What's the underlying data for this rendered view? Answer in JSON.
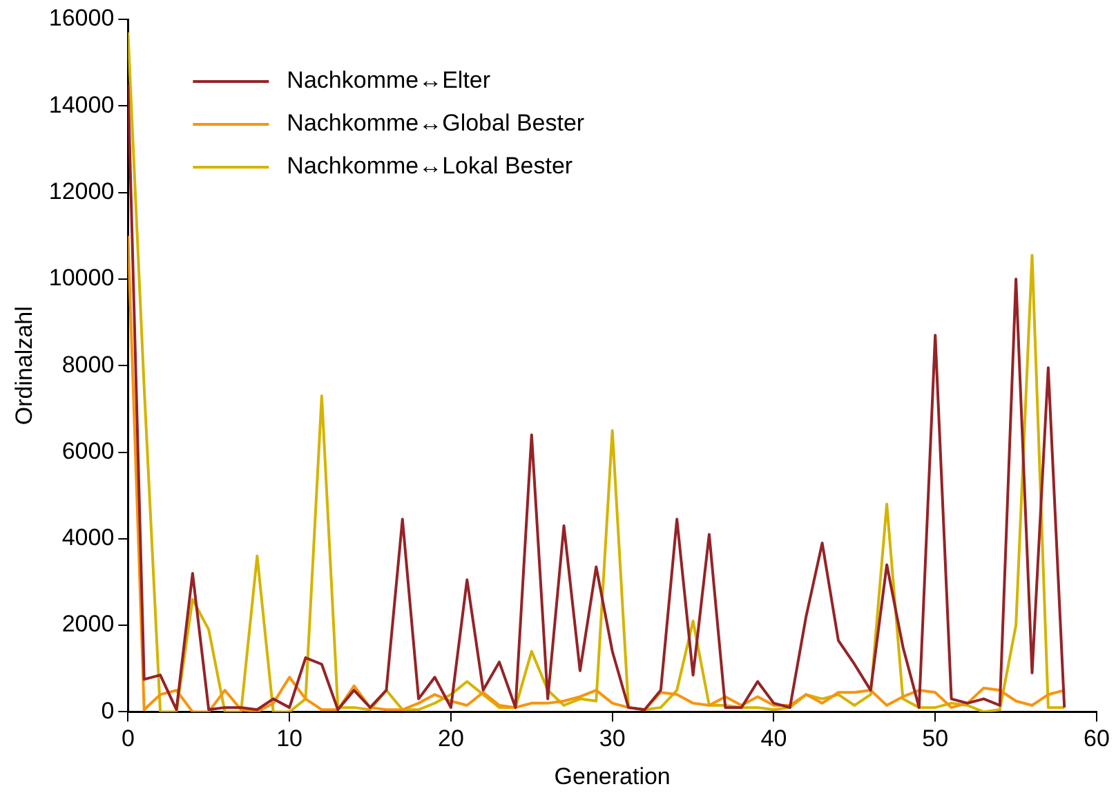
{
  "chart_data": {
    "type": "line",
    "xlabel": "Generation",
    "ylabel": "Ordinalzahl",
    "xlim": [
      0,
      60
    ],
    "xticks": [
      0,
      10,
      20,
      30,
      40,
      50,
      60
    ],
    "ylim": [
      0,
      16000
    ],
    "yticks": [
      0,
      2000,
      4000,
      6000,
      8000,
      10000,
      12000,
      14000,
      16000
    ],
    "grid": false,
    "legend": "top left",
    "marker": "none",
    "line_style": "solid",
    "x": [
      0,
      1,
      2,
      3,
      4,
      5,
      6,
      7,
      8,
      9,
      10,
      11,
      12,
      13,
      14,
      15,
      16,
      17,
      18,
      19,
      20,
      21,
      22,
      23,
      24,
      25,
      26,
      27,
      28,
      29,
      30,
      31,
      32,
      33,
      34,
      35,
      36,
      37,
      38,
      39,
      40,
      41,
      42,
      43,
      44,
      45,
      46,
      47,
      48,
      49,
      50,
      51,
      52,
      53,
      54,
      55,
      56,
      57,
      58
    ],
    "series": [
      {
        "name": "Nachkomme↔Elter",
        "color": "#952327",
        "values": [
          14500,
          750,
          850,
          50,
          3200,
          50,
          100,
          100,
          50,
          300,
          100,
          1250,
          1100,
          50,
          500,
          100,
          500,
          4450,
          300,
          800,
          100,
          3050,
          500,
          1150,
          100,
          6400,
          300,
          4300,
          950,
          3350,
          1400,
          100,
          50,
          500,
          4450,
          850,
          4100,
          100,
          100,
          700,
          200,
          100,
          2200,
          3900,
          1650,
          1100,
          500,
          3400,
          1500,
          100,
          8700,
          300,
          200,
          300,
          150,
          10000,
          900,
          7950,
          100
        ]
      },
      {
        "name": "Nachkomme↔Global Bester",
        "color": "#f7940f",
        "values": [
          11000,
          50,
          400,
          500,
          0,
          0,
          500,
          50,
          0,
          200,
          800,
          300,
          50,
          50,
          600,
          100,
          50,
          50,
          200,
          400,
          250,
          150,
          450,
          150,
          100,
          200,
          200,
          250,
          350,
          500,
          200,
          100,
          50,
          450,
          400,
          200,
          150,
          350,
          150,
          350,
          150,
          150,
          400,
          200,
          450,
          450,
          500,
          150,
          350,
          500,
          450,
          100,
          200,
          550,
          500,
          250,
          150,
          400,
          500
        ]
      },
      {
        "name": "Nachkomme↔Lokal Bester",
        "color": "#d4b400",
        "values": [
          15700,
          7500,
          0,
          0,
          2600,
          1900,
          0,
          0,
          3600,
          0,
          0,
          300,
          7300,
          100,
          100,
          50,
          500,
          50,
          50,
          200,
          400,
          700,
          400,
          100,
          100,
          1400,
          500,
          150,
          300,
          250,
          6500,
          100,
          50,
          100,
          500,
          2100,
          150,
          150,
          100,
          100,
          50,
          100,
          400,
          300,
          400,
          150,
          400,
          4800,
          300,
          100,
          100,
          200,
          150,
          0,
          50,
          2000,
          10550,
          100,
          100
        ]
      }
    ]
  }
}
